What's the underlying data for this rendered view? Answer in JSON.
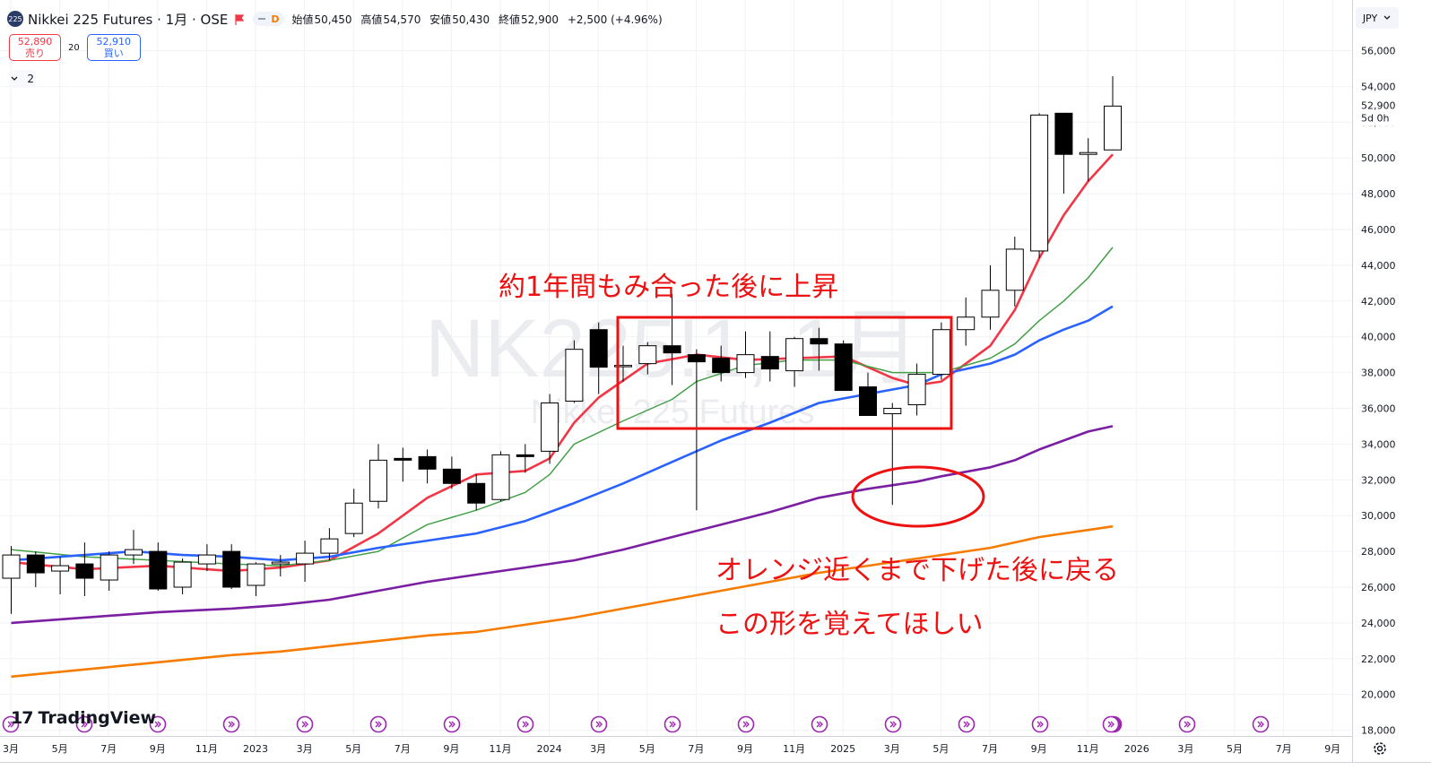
{
  "header": {
    "symbol_badge": "225",
    "title": "Nikkei 225 Futures · 1月 · OSE",
    "pill_letter": "D",
    "open_label": "始値",
    "open": "50,450",
    "high_label": "高値",
    "high": "54,570",
    "low_label": "安値",
    "low": "50,430",
    "close_label": "終値",
    "close": "52,900",
    "change": "+2,500 (+4.96%)"
  },
  "trade": {
    "sell_price": "52,890",
    "sell_label": "売り",
    "spread": "20",
    "buy_price": "52,910",
    "buy_label": "買い"
  },
  "indicators_count": "2",
  "currency": "JPY",
  "brand": "TradingView",
  "colors": {
    "ma_red": "#f23645",
    "ma_green": "#43a047",
    "ma_blue": "#2962ff",
    "ma_purple": "#7b1fa2",
    "ma_orange": "#f57c00",
    "annotation": "#ee1111"
  },
  "chart_data": {
    "type": "candlestick",
    "interval": "1月",
    "watermark": "NK225!1, 1月",
    "watermark_sub": "Nikkei 225 Futures",
    "y_range": [
      18000,
      57000
    ],
    "y_ticks": [
      18000,
      20000,
      22000,
      24000,
      26000,
      28000,
      30000,
      32000,
      34000,
      36000,
      38000,
      40000,
      42000,
      44000,
      46000,
      48000,
      50000,
      52000,
      54000,
      56000
    ],
    "last_price": "52,900",
    "countdown": "5d 0h",
    "x_axis_labels": [
      "3月",
      "5月",
      "7月",
      "9月",
      "11月",
      "2023",
      "3月",
      "5月",
      "7月",
      "9月",
      "11月",
      "2024",
      "3月",
      "5月",
      "7月",
      "9月",
      "11月",
      "2025",
      "3月",
      "5月",
      "7月",
      "9月",
      "11月",
      "2026",
      "3月",
      "5月",
      "7月",
      "9月"
    ],
    "candles": [
      {
        "i": 0,
        "o": 26500,
        "h": 28300,
        "l": 24500,
        "c": 27800
      },
      {
        "i": 1,
        "o": 27800,
        "h": 28000,
        "l": 26000,
        "c": 26800
      },
      {
        "i": 2,
        "o": 26900,
        "h": 27700,
        "l": 25600,
        "c": 27200
      },
      {
        "i": 3,
        "o": 27300,
        "h": 28500,
        "l": 25500,
        "c": 26500
      },
      {
        "i": 4,
        "o": 26400,
        "h": 28000,
        "l": 25800,
        "c": 27800
      },
      {
        "i": 5,
        "o": 27800,
        "h": 29200,
        "l": 27300,
        "c": 28100
      },
      {
        "i": 6,
        "o": 28000,
        "h": 28500,
        "l": 25800,
        "c": 25900
      },
      {
        "i": 7,
        "o": 26000,
        "h": 27600,
        "l": 25600,
        "c": 27400
      },
      {
        "i": 8,
        "o": 27300,
        "h": 28400,
        "l": 26900,
        "c": 27800
      },
      {
        "i": 9,
        "o": 28000,
        "h": 28400,
        "l": 25900,
        "c": 26000
      },
      {
        "i": 10,
        "o": 26100,
        "h": 27400,
        "l": 25500,
        "c": 27300
      },
      {
        "i": 11,
        "o": 27300,
        "h": 27800,
        "l": 26600,
        "c": 27400
      },
      {
        "i": 12,
        "o": 27300,
        "h": 28600,
        "l": 26300,
        "c": 27900
      },
      {
        "i": 13,
        "o": 27900,
        "h": 29300,
        "l": 27500,
        "c": 28700
      },
      {
        "i": 14,
        "o": 29000,
        "h": 31500,
        "l": 28800,
        "c": 30700
      },
      {
        "i": 15,
        "o": 30800,
        "h": 34000,
        "l": 30400,
        "c": 33100
      },
      {
        "i": 16,
        "o": 33200,
        "h": 33800,
        "l": 31900,
        "c": 33100
      },
      {
        "i": 17,
        "o": 33300,
        "h": 33700,
        "l": 31800,
        "c": 32600
      },
      {
        "i": 18,
        "o": 32600,
        "h": 33300,
        "l": 31500,
        "c": 31800
      },
      {
        "i": 19,
        "o": 31800,
        "h": 32300,
        "l": 30300,
        "c": 30700
      },
      {
        "i": 20,
        "o": 30900,
        "h": 33600,
        "l": 30800,
        "c": 33400
      },
      {
        "i": 21,
        "o": 33400,
        "h": 34000,
        "l": 32400,
        "c": 33300
      },
      {
        "i": 22,
        "o": 33600,
        "h": 36800,
        "l": 32900,
        "c": 36300
      },
      {
        "i": 23,
        "o": 36400,
        "h": 39800,
        "l": 36300,
        "c": 39300
      },
      {
        "i": 24,
        "o": 40400,
        "h": 40800,
        "l": 36800,
        "c": 38300
      },
      {
        "i": 25,
        "o": 38400,
        "h": 39500,
        "l": 37500,
        "c": 38400
      },
      {
        "i": 26,
        "o": 38500,
        "h": 39700,
        "l": 37900,
        "c": 39500
      },
      {
        "i": 27,
        "o": 39500,
        "h": 42400,
        "l": 37300,
        "c": 39100
      },
      {
        "i": 28,
        "o": 39000,
        "h": 39300,
        "l": 30300,
        "c": 38600
      },
      {
        "i": 29,
        "o": 38800,
        "h": 39500,
        "l": 37500,
        "c": 38000
      },
      {
        "i": 30,
        "o": 38000,
        "h": 40300,
        "l": 37700,
        "c": 39000
      },
      {
        "i": 31,
        "o": 38900,
        "h": 40300,
        "l": 37500,
        "c": 38200
      },
      {
        "i": 32,
        "o": 38100,
        "h": 40000,
        "l": 37200,
        "c": 39900
      },
      {
        "i": 33,
        "o": 39900,
        "h": 40500,
        "l": 38100,
        "c": 39600
      },
      {
        "i": 34,
        "o": 39600,
        "h": 39800,
        "l": 37000,
        "c": 37000
      },
      {
        "i": 35,
        "o": 37200,
        "h": 38000,
        "l": 35600,
        "c": 35600
      },
      {
        "i": 36,
        "o": 35700,
        "h": 36300,
        "l": 30600,
        "c": 36000
      },
      {
        "i": 37,
        "o": 36200,
        "h": 38500,
        "l": 35600,
        "c": 37900
      },
      {
        "i": 38,
        "o": 37900,
        "h": 40800,
        "l": 37600,
        "c": 40400
      },
      {
        "i": 39,
        "o": 40400,
        "h": 42200,
        "l": 39500,
        "c": 41100
      },
      {
        "i": 40,
        "o": 41100,
        "h": 44000,
        "l": 40400,
        "c": 42600
      },
      {
        "i": 41,
        "o": 42600,
        "h": 45600,
        "l": 41700,
        "c": 44900
      },
      {
        "i": 42,
        "o": 44800,
        "h": 52500,
        "l": 44400,
        "c": 52400
      },
      {
        "i": 43,
        "o": 52500,
        "h": 52500,
        "l": 48000,
        "c": 50200
      },
      {
        "i": 44,
        "o": 50200,
        "h": 51100,
        "l": 48700,
        "c": 50300
      },
      {
        "i": 45,
        "o": 50450,
        "h": 54570,
        "l": 50430,
        "c": 52900
      }
    ],
    "series": [
      {
        "name": "red",
        "color": "#f23645",
        "points": [
          [
            0,
            27400
          ],
          [
            3,
            27000
          ],
          [
            6,
            27200
          ],
          [
            9,
            26900
          ],
          [
            11,
            27100
          ],
          [
            13,
            27500
          ],
          [
            15,
            29000
          ],
          [
            17,
            31000
          ],
          [
            19,
            32300
          ],
          [
            21,
            32500
          ],
          [
            22,
            33200
          ],
          [
            23,
            35200
          ],
          [
            24,
            36600
          ],
          [
            26,
            38500
          ],
          [
            28,
            39000
          ],
          [
            30,
            38700
          ],
          [
            32,
            38800
          ],
          [
            34,
            38900
          ],
          [
            36,
            37700
          ],
          [
            37,
            37300
          ],
          [
            38,
            37500
          ],
          [
            40,
            39500
          ],
          [
            41,
            41500
          ],
          [
            42,
            44400
          ],
          [
            43,
            46800
          ],
          [
            44,
            48700
          ],
          [
            45,
            50200
          ]
        ]
      },
      {
        "name": "green",
        "color": "#43a047",
        "points": [
          [
            0,
            28100
          ],
          [
            3,
            27700
          ],
          [
            6,
            27500
          ],
          [
            9,
            27300
          ],
          [
            11,
            27200
          ],
          [
            13,
            27500
          ],
          [
            15,
            28000
          ],
          [
            17,
            29500
          ],
          [
            19,
            30300
          ],
          [
            21,
            31300
          ],
          [
            22,
            32300
          ],
          [
            23,
            34000
          ],
          [
            25,
            35300
          ],
          [
            27,
            36500
          ],
          [
            28,
            37500
          ],
          [
            30,
            38400
          ],
          [
            32,
            38700
          ],
          [
            34,
            38700
          ],
          [
            36,
            38000
          ],
          [
            38,
            38000
          ],
          [
            40,
            38800
          ],
          [
            41,
            39600
          ],
          [
            42,
            40900
          ],
          [
            43,
            42000
          ],
          [
            44,
            43300
          ],
          [
            45,
            45000
          ]
        ]
      },
      {
        "name": "blue",
        "color": "#2962ff",
        "points": [
          [
            0,
            27500
          ],
          [
            3,
            27800
          ],
          [
            5,
            28000
          ],
          [
            7,
            27800
          ],
          [
            9,
            27700
          ],
          [
            11,
            27500
          ],
          [
            13,
            27700
          ],
          [
            15,
            28200
          ],
          [
            17,
            28600
          ],
          [
            19,
            29000
          ],
          [
            21,
            29700
          ],
          [
            23,
            30700
          ],
          [
            25,
            31800
          ],
          [
            27,
            33000
          ],
          [
            29,
            34200
          ],
          [
            31,
            35200
          ],
          [
            33,
            36300
          ],
          [
            35,
            36800
          ],
          [
            37,
            37300
          ],
          [
            38,
            37900
          ],
          [
            40,
            38500
          ],
          [
            41,
            39000
          ],
          [
            42,
            39800
          ],
          [
            43,
            40400
          ],
          [
            44,
            40900
          ],
          [
            45,
            41700
          ]
        ]
      },
      {
        "name": "purple",
        "color": "#7b1fa2",
        "points": [
          [
            0,
            24000
          ],
          [
            3,
            24300
          ],
          [
            6,
            24600
          ],
          [
            9,
            24800
          ],
          [
            11,
            25000
          ],
          [
            13,
            25300
          ],
          [
            15,
            25800
          ],
          [
            17,
            26300
          ],
          [
            19,
            26700
          ],
          [
            21,
            27100
          ],
          [
            23,
            27500
          ],
          [
            25,
            28100
          ],
          [
            27,
            28800
          ],
          [
            29,
            29500
          ],
          [
            31,
            30200
          ],
          [
            33,
            31000
          ],
          [
            35,
            31500
          ],
          [
            37,
            31900
          ],
          [
            38,
            32200
          ],
          [
            40,
            32700
          ],
          [
            41,
            33100
          ],
          [
            42,
            33700
          ],
          [
            43,
            34200
          ],
          [
            44,
            34700
          ],
          [
            45,
            35000
          ]
        ]
      },
      {
        "name": "orange",
        "color": "#f57c00",
        "points": [
          [
            0,
            21000
          ],
          [
            3,
            21400
          ],
          [
            6,
            21800
          ],
          [
            9,
            22200
          ],
          [
            11,
            22400
          ],
          [
            13,
            22700
          ],
          [
            15,
            23000
          ],
          [
            17,
            23300
          ],
          [
            19,
            23500
          ],
          [
            21,
            23900
          ],
          [
            23,
            24300
          ],
          [
            25,
            24800
          ],
          [
            27,
            25300
          ],
          [
            29,
            25800
          ],
          [
            31,
            26300
          ],
          [
            33,
            26800
          ],
          [
            35,
            27200
          ],
          [
            37,
            27600
          ],
          [
            38,
            27800
          ],
          [
            40,
            28200
          ],
          [
            41,
            28500
          ],
          [
            42,
            28800
          ],
          [
            43,
            29000
          ],
          [
            44,
            29200
          ],
          [
            45,
            29400
          ]
        ]
      }
    ],
    "annotations": {
      "range_text": "約1年間もみ合った後に上昇",
      "dip_text": "オレンジ近くまで下げた後に戻る",
      "shape_text": "この形を覚えてほしい"
    }
  }
}
